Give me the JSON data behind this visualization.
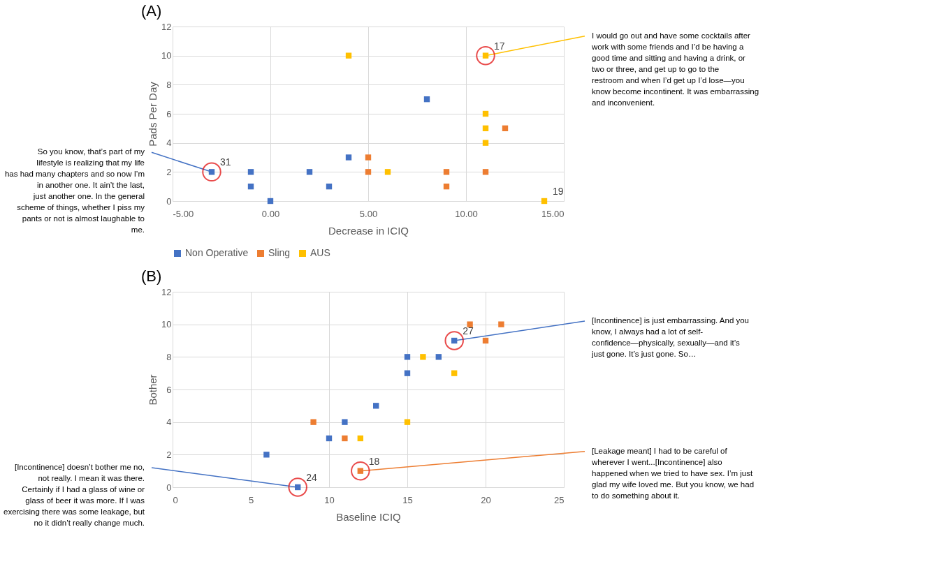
{
  "chart_data": [
    {
      "type": "scatter",
      "title": "(A)",
      "xlabel": "Decrease in ICIQ",
      "ylabel": "Pads Per Day",
      "xlim": [
        -5,
        15
      ],
      "xticks": [
        {
          "value": -5,
          "label": "-5.00"
        },
        {
          "value": 0,
          "label": "0.00"
        },
        {
          "value": 5,
          "label": "5.00"
        },
        {
          "value": 10,
          "label": "10.00"
        },
        {
          "value": 15,
          "label": "15.00"
        }
      ],
      "ylim": [
        0,
        12
      ],
      "yticks": [
        0,
        2,
        4,
        6,
        8,
        10,
        12
      ],
      "grid": true,
      "legend": "bottom",
      "marker": "square",
      "series": [
        {
          "name": "Non Operative",
          "color": "#4472c4",
          "x": [
            -3,
            -1,
            -1,
            0,
            2,
            3,
            4,
            8
          ],
          "values": [
            2,
            2,
            1,
            0,
            2,
            1,
            3,
            7
          ]
        },
        {
          "name": "Sling",
          "color": "#ed7d31",
          "x": [
            5,
            5,
            9,
            9,
            11,
            12
          ],
          "values": [
            3,
            2,
            2,
            1,
            2,
            5
          ]
        },
        {
          "name": "AUS",
          "color": "#ffc000",
          "x": [
            4,
            11,
            6,
            11,
            11,
            11,
            14
          ],
          "values": [
            10,
            10,
            2,
            6,
            5,
            4,
            0
          ]
        }
      ],
      "annotations": [
        {
          "text": "31",
          "x": -3,
          "y": 2
        },
        {
          "text": "17",
          "x": 11,
          "y": 10
        },
        {
          "text": "19",
          "x": 14,
          "y": 0
        },
        {
          "text": "So you know, that’s part of my lifestyle is realizing that my life has had many chapters and so now I’m in another one. It ain’t the last, just another one. In the general scheme of things, whether I piss my pants or not is almost laughable to me.",
          "x": -3,
          "y": 2
        },
        {
          "text": "I would go out and have some cocktails after work with some friends and I’d be having a good time and sitting and having a drink, or two or three, and get up to go to the restroom and when I’d get up I’d lose—you know become incontinent. It was embarrassing and inconvenient.",
          "x": 11,
          "y": 10
        }
      ]
    },
    {
      "type": "scatter",
      "title": "(B)",
      "xlabel": "Baseline ICIQ",
      "ylabel": "Bother",
      "xlim": [
        0,
        25
      ],
      "xticks": [
        0,
        5,
        10,
        15,
        20,
        25
      ],
      "ylim": [
        0,
        12
      ],
      "yticks": [
        0,
        2,
        4,
        6,
        8,
        10,
        12
      ],
      "grid": true,
      "marker": "square",
      "series": [
        {
          "color": "#4472c4",
          "x": [
            8,
            6,
            10,
            11,
            13,
            15,
            15,
            17,
            18
          ],
          "values": [
            0,
            2,
            3,
            4,
            5,
            7,
            8,
            8,
            9
          ]
        },
        {
          "color": "#ed7d31",
          "x": [
            9,
            11,
            12,
            19,
            21,
            20
          ],
          "values": [
            4,
            3,
            1,
            10,
            10,
            9
          ]
        },
        {
          "color": "#ffc000",
          "x": [
            12,
            15,
            16,
            18
          ],
          "values": [
            3,
            4,
            8,
            7
          ]
        }
      ],
      "annotations": [
        {
          "text": "27",
          "x": 18,
          "y": 9
        },
        {
          "text": "24",
          "x": 8,
          "y": 0
        },
        {
          "text": "18",
          "x": 12,
          "y": 1
        },
        {
          "text": "[Incontinence] is just embarrassing. And you know, I always had a lot of self-confidence—physically, sexually—and it’s just gone. It’s just gone. So…",
          "x": 18,
          "y": 9
        },
        {
          "text": "[Leakage meant] I had to be careful of wherever I went...[Incontinence] also happened when we tried to have sex. I’m just glad my wife loved me. But you know, we had to do something about it.",
          "x": 12,
          "y": 1
        },
        {
          "text": "[Incontinence] doesn’t bother me no, not really. I mean it was there. Certainly if I had a glass of wine or glass of beer it was more. If I was exercising there was some leakage, but no it didn’t really change much.",
          "x": 8,
          "y": 0
        }
      ]
    }
  ]
}
